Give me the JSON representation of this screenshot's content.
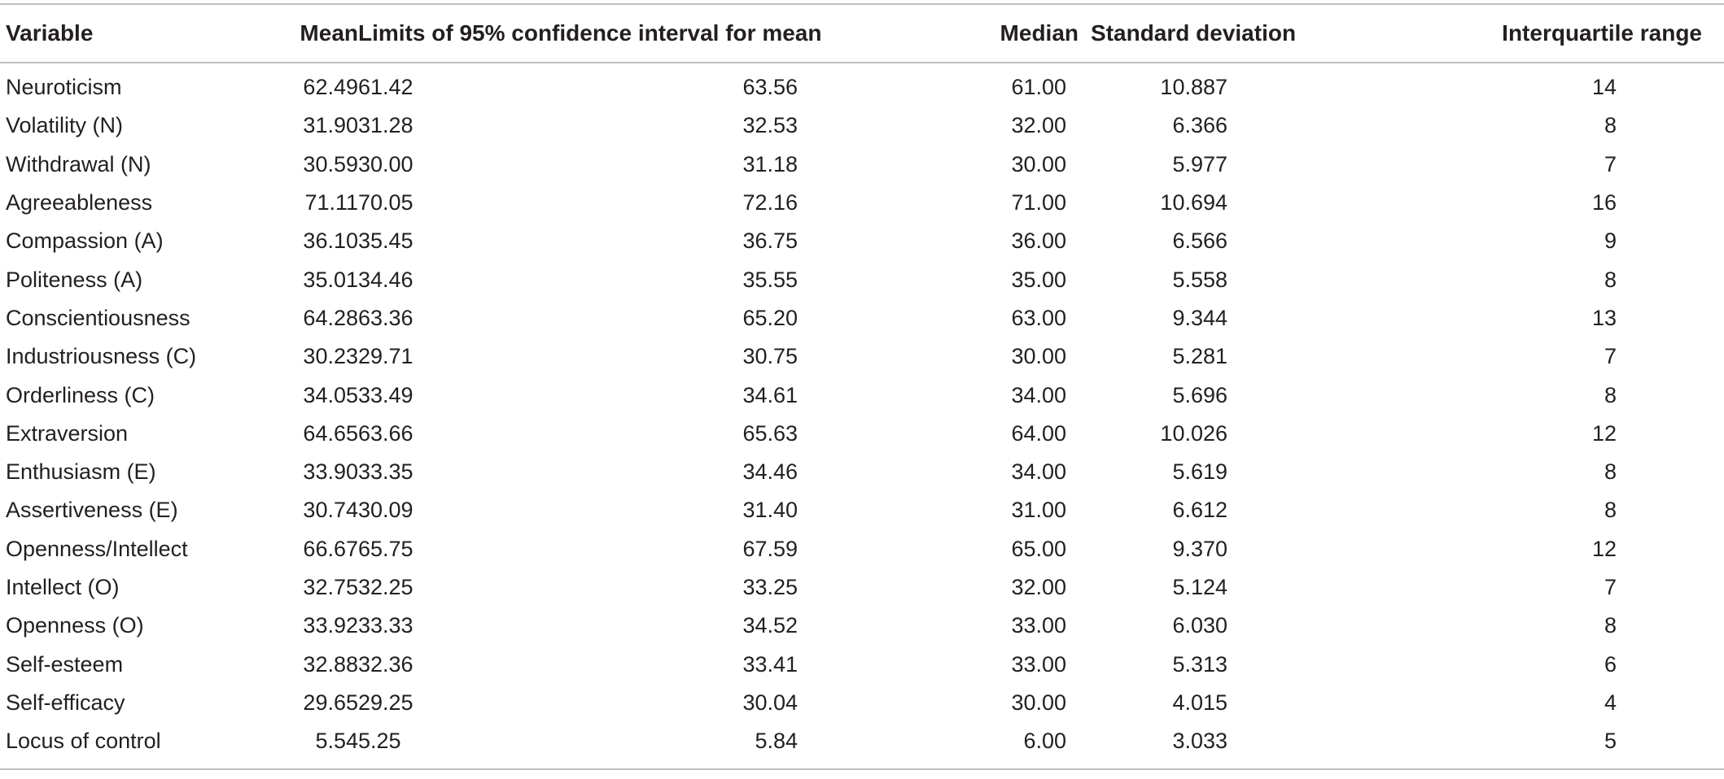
{
  "table": {
    "headers": {
      "variable": "Variable",
      "mean": "Mean",
      "ci": "Limits of 95% confidence interval for mean",
      "median": "Median",
      "sd": "Standard deviation",
      "iqr": "Interquartile range"
    },
    "rows": [
      {
        "variable": "Neuroticism",
        "mean": "62.49",
        "ci_low": "61.42",
        "ci_high": "63.56",
        "median": "61.00",
        "sd": "10.887",
        "iqr": "14"
      },
      {
        "variable": "Volatility (N)",
        "mean": "31.90",
        "ci_low": "31.28",
        "ci_high": "32.53",
        "median": "32.00",
        "sd": "6.366",
        "iqr": "8"
      },
      {
        "variable": "Withdrawal (N)",
        "mean": "30.59",
        "ci_low": "30.00",
        "ci_high": "31.18",
        "median": "30.00",
        "sd": "5.977",
        "iqr": "7"
      },
      {
        "variable": "Agreeableness",
        "mean": "71.11",
        "ci_low": "70.05",
        "ci_high": "72.16",
        "median": "71.00",
        "sd": "10.694",
        "iqr": "16"
      },
      {
        "variable": "Compassion (A)",
        "mean": "36.10",
        "ci_low": "35.45",
        "ci_high": "36.75",
        "median": "36.00",
        "sd": "6.566",
        "iqr": "9"
      },
      {
        "variable": "Politeness (A)",
        "mean": "35.01",
        "ci_low": "34.46",
        "ci_high": "35.55",
        "median": "35.00",
        "sd": "5.558",
        "iqr": "8"
      },
      {
        "variable": "Conscientiousness",
        "mean": "64.28",
        "ci_low": "63.36",
        "ci_high": "65.20",
        "median": "63.00",
        "sd": "9.344",
        "iqr": "13"
      },
      {
        "variable": "Industriousness (C)",
        "mean": "30.23",
        "ci_low": "29.71",
        "ci_high": "30.75",
        "median": "30.00",
        "sd": "5.281",
        "iqr": "7"
      },
      {
        "variable": "Orderliness (C)",
        "mean": "34.05",
        "ci_low": "33.49",
        "ci_high": "34.61",
        "median": "34.00",
        "sd": "5.696",
        "iqr": "8"
      },
      {
        "variable": "Extraversion",
        "mean": "64.65",
        "ci_low": "63.66",
        "ci_high": "65.63",
        "median": "64.00",
        "sd": "10.026",
        "iqr": "12"
      },
      {
        "variable": "Enthusiasm (E)",
        "mean": "33.90",
        "ci_low": "33.35",
        "ci_high": "34.46",
        "median": "34.00",
        "sd": "5.619",
        "iqr": "8"
      },
      {
        "variable": "Assertiveness (E)",
        "mean": "30.74",
        "ci_low": "30.09",
        "ci_high": "31.40",
        "median": "31.00",
        "sd": "6.612",
        "iqr": "8"
      },
      {
        "variable": "Openness/Intellect",
        "mean": "66.67",
        "ci_low": "65.75",
        "ci_high": "67.59",
        "median": "65.00",
        "sd": "9.370",
        "iqr": "12"
      },
      {
        "variable": "Intellect (O)",
        "mean": "32.75",
        "ci_low": "32.25",
        "ci_high": "33.25",
        "median": "32.00",
        "sd": "5.124",
        "iqr": "7"
      },
      {
        "variable": "Openness (O)",
        "mean": "33.92",
        "ci_low": "33.33",
        "ci_high": "34.52",
        "median": "33.00",
        "sd": "6.030",
        "iqr": "8"
      },
      {
        "variable": "Self-esteem",
        "mean": "32.88",
        "ci_low": "32.36",
        "ci_high": "33.41",
        "median": "33.00",
        "sd": "5.313",
        "iqr": "6"
      },
      {
        "variable": "Self-efficacy",
        "mean": "29.65",
        "ci_low": "29.25",
        "ci_high": "30.04",
        "median": "30.00",
        "sd": "4.015",
        "iqr": "4"
      },
      {
        "variable": "Locus of control",
        "mean": "5.54",
        "ci_low": "5.25",
        "ci_high": "5.84",
        "median": "6.00",
        "sd": "3.033",
        "iqr": "5"
      }
    ]
  }
}
